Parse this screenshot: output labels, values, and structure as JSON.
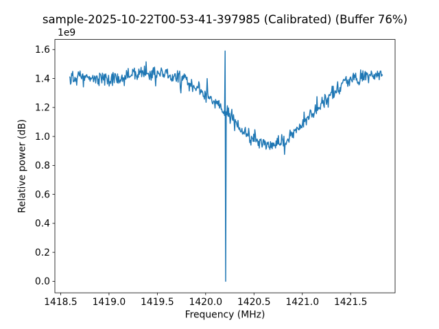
{
  "chart_data": {
    "type": "line",
    "title": "sample-2025-10-22T00-53-41-397985 (Calibrated) (Buffer 76%)",
    "xlabel": "Frequency (MHz)",
    "ylabel": "Relative power (dB)",
    "y_offset_label": "1e9",
    "y_unit_multiplier": 1000000000,
    "x_tick_values": [
      1418.5,
      1419.0,
      1419.5,
      1420.0,
      1420.5,
      1421.0,
      1421.5
    ],
    "x_tick_labels": [
      "1418.5",
      "1419.0",
      "1419.5",
      "1420.0",
      "1420.5",
      "1421.0",
      "1421.5"
    ],
    "y_tick_values": [
      0.0,
      0.2,
      0.4,
      0.6,
      0.8,
      1.0,
      1.2,
      1.4,
      1.6
    ],
    "y_tick_labels": [
      "0.0",
      "0.2",
      "0.4",
      "0.6",
      "0.8",
      "1.0",
      "1.2",
      "1.4",
      "1.6"
    ],
    "xlim": [
      1418.44,
      1421.96
    ],
    "ylim": [
      -0.0795,
      1.6695
    ],
    "x_range": [
      1418.59,
      1421.83
    ],
    "n_points": 560,
    "grid": false,
    "legend": false,
    "line_color": "#1f77b4",
    "background_color": "#ffffff",
    "noise_amplitude": 0.058,
    "noise_seed": 20251022,
    "baseline_envelope": [
      [
        1418.59,
        1.41
      ],
      [
        1418.8,
        1.4
      ],
      [
        1419.0,
        1.4
      ],
      [
        1419.15,
        1.41
      ],
      [
        1419.3,
        1.43
      ],
      [
        1419.45,
        1.44
      ],
      [
        1419.6,
        1.43
      ],
      [
        1419.7,
        1.41
      ],
      [
        1419.8,
        1.38
      ],
      [
        1419.9,
        1.34
      ],
      [
        1420.0,
        1.29
      ],
      [
        1420.1,
        1.23
      ],
      [
        1420.2,
        1.16
      ],
      [
        1420.3,
        1.09
      ],
      [
        1420.4,
        1.03
      ],
      [
        1420.5,
        0.97
      ],
      [
        1420.62,
        0.93
      ],
      [
        1420.75,
        0.95
      ],
      [
        1420.85,
        0.99
      ],
      [
        1420.95,
        1.05
      ],
      [
        1421.05,
        1.12
      ],
      [
        1421.15,
        1.19
      ],
      [
        1421.25,
        1.26
      ],
      [
        1421.35,
        1.32
      ],
      [
        1421.45,
        1.38
      ],
      [
        1421.55,
        1.4
      ],
      [
        1421.65,
        1.415
      ],
      [
        1421.75,
        1.42
      ],
      [
        1421.83,
        1.41
      ]
    ],
    "dropout_spike": {
      "freq": 1420.2,
      "top": 1.59,
      "bottom": 0.0
    },
    "rfi_spikes": [
      {
        "freq": 1420.015,
        "value": 1.4
      },
      {
        "freq": 1420.29,
        "value": 1.15
      }
    ]
  }
}
